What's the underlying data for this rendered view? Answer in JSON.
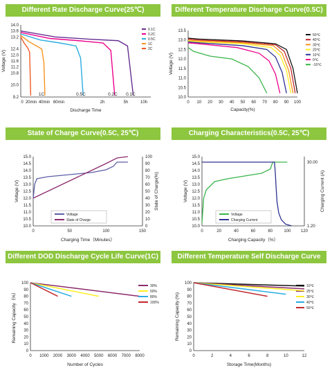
{
  "chart_data": [
    {
      "type": "line",
      "title": "Different Rate Discharge Curve(25℃)",
      "xlabel": "Discharge Time",
      "ylabel": "Voltage (V)",
      "yticks": [
        14.0,
        13.6,
        13.2,
        12.4,
        12.0,
        11.6,
        11.2,
        10.8,
        10.0,
        9.2
      ],
      "xticks": [
        "0",
        "20min",
        "40min",
        "60min",
        "2h",
        "5h",
        "10h"
      ],
      "ylim": [
        9.2,
        14.0
      ],
      "series": [
        {
          "name": "1C",
          "color": "#f7941d",
          "x": [
            0,
            0.3,
            0.6,
            0.8,
            0.88,
            0.92
          ],
          "y": [
            13.3,
            12.9,
            12.6,
            12.4,
            11.5,
            9.3
          ]
        },
        {
          "name": "0.5C",
          "color": "#29abe2",
          "x": [
            0,
            0.3,
            0.6,
            0.85,
            0.92,
            0.96
          ],
          "y": [
            13.4,
            13.0,
            12.8,
            12.6,
            11.8,
            9.3
          ]
        },
        {
          "name": "0.2C",
          "color": "#ec008c",
          "x": [
            0,
            0.3,
            0.6,
            0.85,
            0.93,
            0.97
          ],
          "y": [
            13.5,
            13.1,
            12.95,
            12.8,
            12.3,
            9.3
          ]
        },
        {
          "name": "0.1C",
          "color": "#662d91",
          "x": [
            0,
            0.3,
            0.6,
            0.85,
            0.93,
            0.98
          ],
          "y": [
            13.6,
            13.2,
            13.05,
            12.95,
            12.6,
            9.3
          ]
        },
        {
          "name": "2C",
          "color": "#f15a24",
          "x": [
            0,
            0.3,
            0.6,
            0.8,
            0.9
          ],
          "y": [
            13.2,
            12.8,
            12.5,
            12.2,
            9.3
          ]
        }
      ],
      "curve_labels": [
        "1C",
        "0.5C",
        "0.2C",
        "0.1C"
      ],
      "legend": [
        "0.1C",
        "0.2C",
        "0.5C",
        "1C",
        "2C"
      ]
    },
    {
      "type": "line",
      "title": "Different Temperature Discharge Curve(0.5C)",
      "xlabel": "Capacity(%)",
      "ylabel": "Voltage (V)",
      "ylim": [
        10.0,
        13.5
      ],
      "yticks": [
        13.5,
        13.0,
        12.5,
        12.0,
        11.5,
        11.0,
        10.5,
        10.0
      ],
      "xlim": [
        0,
        100
      ],
      "xticks": [
        0,
        10,
        20,
        30,
        40,
        50,
        60,
        70,
        80,
        90,
        100
      ],
      "series": [
        {
          "name": "50℃",
          "color": "#111111",
          "x": [
            0,
            10,
            50,
            80,
            90,
            96,
            100
          ],
          "y": [
            13.1,
            13.05,
            12.95,
            12.8,
            12.5,
            11.5,
            10.2
          ]
        },
        {
          "name": "40℃",
          "color": "#c1272d",
          "x": [
            0,
            10,
            50,
            80,
            88,
            94,
            98
          ],
          "y": [
            13.05,
            13.0,
            12.9,
            12.75,
            12.4,
            11.5,
            10.2
          ]
        },
        {
          "name": "30℃",
          "color": "#f7941d",
          "x": [
            0,
            10,
            50,
            78,
            86,
            92,
            96
          ],
          "y": [
            13.0,
            12.95,
            12.85,
            12.7,
            12.3,
            11.4,
            10.2
          ]
        },
        {
          "name": "20℃",
          "color": "#fcee21",
          "x": [
            0,
            10,
            50,
            76,
            84,
            90,
            94
          ],
          "y": [
            12.95,
            12.9,
            12.8,
            12.6,
            12.2,
            11.4,
            10.2
          ]
        },
        {
          "name": "10℃",
          "color": "#2e3192",
          "x": [
            0,
            10,
            50,
            72,
            80,
            86,
            90
          ],
          "y": [
            12.9,
            12.85,
            12.7,
            12.5,
            12.1,
            11.3,
            10.2
          ]
        },
        {
          "name": "0℃",
          "color": "#ec008c",
          "x": [
            0,
            10,
            45,
            65,
            74,
            80,
            84
          ],
          "y": [
            12.85,
            12.8,
            12.6,
            12.3,
            11.9,
            11.2,
            10.2
          ]
        },
        {
          "name": "-10℃",
          "color": "#39b54a",
          "x": [
            0,
            5,
            20,
            40,
            55,
            65,
            72
          ],
          "y": [
            12.6,
            12.4,
            12.15,
            12.0,
            11.6,
            11.0,
            10.2
          ]
        }
      ]
    },
    {
      "type": "line",
      "title": "State of Charge Curve(0.5C, 25℃)",
      "xlabel": "Charging Time（Minutes）",
      "ylabel": "Voltage (V)",
      "y2label": "State of Charge(%)",
      "ylim": [
        10.0,
        15.0
      ],
      "yticks": [
        15.0,
        14.5,
        14.0,
        13.5,
        13.0,
        12.5,
        12.0,
        11.5,
        11.0,
        10.5,
        10.0
      ],
      "y2lim": [
        0,
        100
      ],
      "y2ticks": [
        100,
        90,
        80,
        70,
        60,
        50,
        40,
        30,
        20,
        10,
        0
      ],
      "xlim": [
        0,
        150
      ],
      "xticks": [
        0,
        50,
        100,
        150
      ],
      "legend": [
        "Voltage",
        "State of Charge"
      ],
      "series": [
        {
          "name": "Voltage",
          "color": "#5b5ea6",
          "x": [
            0,
            2,
            5,
            20,
            50,
            80,
            100,
            110,
            115,
            120,
            130
          ],
          "y": [
            12.0,
            13.0,
            13.4,
            13.55,
            13.7,
            13.85,
            14.05,
            14.3,
            14.6,
            14.6,
            14.6
          ]
        },
        {
          "name": "State of Charge",
          "color": "#8b2a6b",
          "x": [
            0,
            20,
            40,
            60,
            80,
            100,
            115,
            130
          ],
          "y": [
            40,
            50,
            60,
            70,
            80,
            90,
            98,
            100
          ]
        }
      ]
    },
    {
      "type": "line",
      "title": "Charging Characteristics(0.5C, 25℃)",
      "xlabel": "Charging Capacity（%）",
      "ylabel": "Voltage (V)",
      "y2label": "Charging Current (A)",
      "ylim": [
        10.0,
        15.0
      ],
      "yticks": [
        15.0,
        14.5,
        14.0,
        13.5,
        13.0,
        12.5,
        12.0,
        11.5,
        11.0,
        10.5,
        10.0
      ],
      "y2ticks": [
        "30.00",
        "1.20"
      ],
      "xlim": [
        0,
        120
      ],
      "xticks": [
        0,
        20,
        40,
        60,
        80,
        100,
        120
      ],
      "legend": [
        "Voltage",
        "Charging Current"
      ],
      "series": [
        {
          "name": "Voltage",
          "color": "#39b54a",
          "x": [
            0,
            2,
            5,
            15,
            30,
            50,
            70,
            80,
            83,
            85,
            100
          ],
          "y": [
            10.2,
            12.0,
            12.6,
            13.2,
            13.4,
            13.6,
            13.8,
            14.1,
            14.6,
            14.6,
            14.6
          ]
        },
        {
          "name": "Charging Current",
          "color": "#2e3192",
          "x": [
            0,
            85,
            86,
            87,
            88,
            90,
            93,
            98,
            105
          ],
          "y": [
            30.0,
            30.0,
            25.0,
            18.0,
            12.0,
            7.0,
            4.0,
            2.0,
            1.2
          ]
        }
      ]
    },
    {
      "type": "line",
      "title": "Different DOD Discharge Cycle Life Curve(1C)",
      "xlabel": "Number of Cycles",
      "ylabel": "Remaining Capacity（%）",
      "ylim": [
        0,
        100
      ],
      "yticks": [
        100,
        90,
        80,
        70,
        60,
        50,
        40,
        30,
        20,
        10,
        0
      ],
      "xlim": [
        0,
        8000
      ],
      "xticks": [
        0,
        1000,
        2000,
        3000,
        4000,
        5000,
        6000,
        7000,
        8000
      ],
      "series": [
        {
          "name": "30%",
          "color": "#8b2a6b",
          "x": [
            0,
            8000
          ],
          "y": [
            100,
            80
          ]
        },
        {
          "name": "50%",
          "color": "#fcee21",
          "x": [
            0,
            5000
          ],
          "y": [
            100,
            80
          ]
        },
        {
          "name": "80%",
          "color": "#29abe2",
          "x": [
            0,
            3000
          ],
          "y": [
            100,
            80
          ]
        },
        {
          "name": "100%",
          "color": "#c1272d",
          "x": [
            0,
            2000
          ],
          "y": [
            100,
            80
          ]
        }
      ]
    },
    {
      "type": "line",
      "title": "Different Temperature Self Discharge Curve",
      "xlabel": "Storage Time(Months)",
      "ylabel": "Remaining Capacity (%)",
      "ylim": [
        0,
        100
      ],
      "yticks": [
        100,
        90,
        80,
        70,
        60,
        50,
        40,
        30,
        20,
        10,
        0
      ],
      "xlim": [
        0,
        12
      ],
      "xticks": [
        0,
        2,
        4,
        6,
        8,
        10,
        12
      ],
      "series": [
        {
          "name": "10℃",
          "color": "#111111",
          "x": [
            0,
            12
          ],
          "y": [
            100,
            95
          ]
        },
        {
          "name": "25℃",
          "color": "#8b2a6b",
          "x": [
            0,
            12
          ],
          "y": [
            100,
            91
          ]
        },
        {
          "name": "30℃",
          "color": "#fcee21",
          "x": [
            0,
            12
          ],
          "y": [
            100,
            88
          ]
        },
        {
          "name": "40℃",
          "color": "#29abe2",
          "x": [
            0,
            10
          ],
          "y": [
            100,
            83
          ]
        },
        {
          "name": "50℃",
          "color": "#c1272d",
          "x": [
            0,
            8
          ],
          "y": [
            100,
            80
          ]
        }
      ]
    }
  ]
}
